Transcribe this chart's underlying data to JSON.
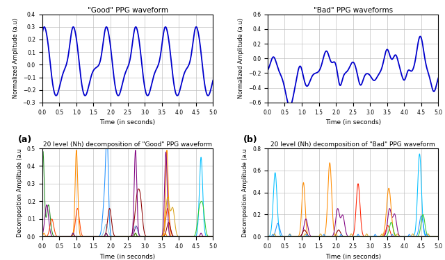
{
  "good_ppg_title": "\"Good\" PPG waveform",
  "bad_ppg_title": "\"Bad\" PPG waveforms",
  "good_decomp_title": "20 level (Nh) decomposition of \"Good\" PPG waveform",
  "bad_decomp_title": "20 level (Nh) decomposition of \"Bad\" PPG waveform",
  "xlabel": "Time (in seconds)",
  "ylabel_ppg": "Normalized Amplitude (a.u)",
  "ylabel_decomp": "Decomposition Amplitude (a.u",
  "good_ylim": [
    -0.3,
    0.4
  ],
  "bad_ylim": [
    -0.6,
    0.6
  ],
  "good_decomp_ylim": [
    0,
    0.5
  ],
  "bad_decomp_ylim": [
    0,
    0.8
  ],
  "xlim": [
    0,
    5
  ],
  "label_a": "(a)",
  "label_b": "(b)",
  "line_color": "#0000CC",
  "good_yticks": [
    -0.3,
    -0.2,
    -0.1,
    0.0,
    0.1,
    0.2,
    0.3,
    0.4
  ],
  "bad_yticks": [
    -0.6,
    -0.4,
    -0.2,
    0.0,
    0.2,
    0.4,
    0.6
  ],
  "good_decomp_yticks": [
    0.0,
    0.1,
    0.2,
    0.3,
    0.4,
    0.5
  ],
  "bad_decomp_yticks": [
    0.0,
    0.2,
    0.4,
    0.6,
    0.8
  ],
  "xticks": [
    0,
    0.5,
    1.0,
    1.5,
    2.0,
    2.5,
    3.0,
    3.5,
    4.0,
    4.5,
    5.0
  ]
}
